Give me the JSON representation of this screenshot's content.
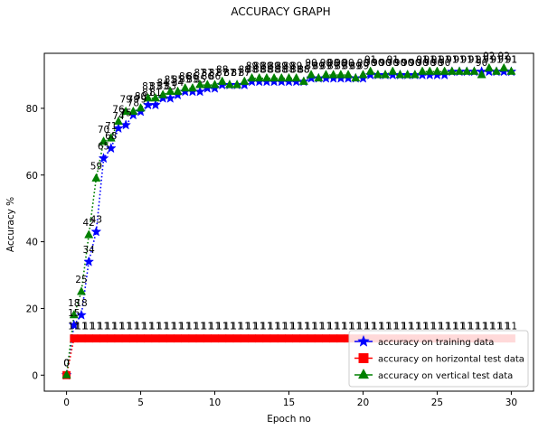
{
  "chart_data": {
    "type": "line",
    "title": "ACCURACY GRAPH",
    "xlabel": "Epoch no",
    "ylabel": "Accuracy %",
    "xlim": [
      -1.5,
      31.5
    ],
    "ylim": [
      -4.8,
      96.5
    ],
    "xticks": [
      "0",
      "5",
      "10",
      "15",
      "20",
      "25",
      "30"
    ],
    "yticks": [
      "0",
      "20",
      "40",
      "60",
      "80"
    ],
    "grid": false,
    "legend_position": "lower-right",
    "series": [
      {
        "name": "accuracy on training data",
        "color": "#0000ff",
        "marker": "star",
        "line_style": "dotted",
        "x": [
          0,
          0.5,
          1,
          1.5,
          2,
          2.5,
          3,
          3.5,
          4,
          4.5,
          5,
          5.5,
          6,
          6.5,
          7,
          7.5,
          8,
          8.5,
          9,
          9.5,
          10,
          10.5,
          11,
          11.5,
          12,
          12.5,
          13,
          13.5,
          14,
          14.5,
          15,
          15.5,
          16,
          16.5,
          17,
          17.5,
          18,
          18.5,
          19,
          19.5,
          20,
          20.5,
          21,
          21.5,
          22,
          22.5,
          23,
          23.5,
          24,
          24.5,
          25,
          25.5,
          26,
          26.5,
          27,
          27.5,
          28,
          28.5,
          29,
          29.5,
          30
        ],
        "y": [
          0,
          15,
          18,
          34,
          43,
          65,
          68,
          74,
          75,
          78,
          79,
          81,
          81,
          83,
          83,
          84,
          85,
          85,
          85,
          86,
          86,
          87,
          87,
          87,
          87,
          88,
          88,
          88,
          88,
          88,
          88,
          88,
          88,
          89,
          89,
          89,
          89,
          89,
          89,
          89,
          89,
          90,
          90,
          90,
          90,
          90,
          90,
          90,
          90,
          90,
          90,
          90,
          91,
          91,
          91,
          91,
          91,
          91,
          91,
          91,
          91
        ]
      },
      {
        "name": "accuracy on horizontal test data",
        "color": "#ff0000",
        "marker": "square",
        "line_style": "dotted",
        "x": [
          0,
          0.5,
          1,
          1.5,
          2,
          2.5,
          3,
          3.5,
          4,
          4.5,
          5,
          5.5,
          6,
          6.5,
          7,
          7.5,
          8,
          8.5,
          9,
          9.5,
          10,
          10.5,
          11,
          11.5,
          12,
          12.5,
          13,
          13.5,
          14,
          14.5,
          15,
          15.5,
          16,
          16.5,
          17,
          17.5,
          18,
          18.5,
          19,
          19.5,
          20,
          20.5,
          21,
          21.5,
          22,
          22.5,
          23,
          23.5,
          24,
          24.5,
          25,
          25.5,
          26,
          26.5,
          27,
          27.5,
          28,
          28.5,
          29,
          29.5,
          30
        ],
        "y": [
          0,
          11,
          11,
          11,
          11,
          11,
          11,
          11,
          11,
          11,
          11,
          11,
          11,
          11,
          11,
          11,
          11,
          11,
          11,
          11,
          11,
          11,
          11,
          11,
          11,
          11,
          11,
          11,
          11,
          11,
          11,
          11,
          11,
          11,
          11,
          11,
          11,
          11,
          11,
          11,
          11,
          11,
          11,
          11,
          11,
          11,
          11,
          11,
          11,
          11,
          11,
          11,
          11,
          11,
          11,
          11,
          11,
          11,
          11,
          11,
          11
        ]
      },
      {
        "name": "accuracy on vertical test data",
        "color": "#008000",
        "marker": "triangle",
        "line_style": "dotted",
        "x": [
          0,
          0.5,
          1,
          1.5,
          2,
          2.5,
          3,
          3.5,
          4,
          4.5,
          5,
          5.5,
          6,
          6.5,
          7,
          7.5,
          8,
          8.5,
          9,
          9.5,
          10,
          10.5,
          11,
          11.5,
          12,
          12.5,
          13,
          13.5,
          14,
          14.5,
          15,
          15.5,
          16,
          16.5,
          17,
          17.5,
          18,
          18.5,
          19,
          19.5,
          20,
          20.5,
          21,
          21.5,
          22,
          22.5,
          23,
          23.5,
          24,
          24.5,
          25,
          25.5,
          26,
          26.5,
          27,
          27.5,
          28,
          28.5,
          29,
          29.5,
          30
        ],
        "y": [
          0,
          18,
          25,
          42,
          59,
          70,
          71,
          76,
          79,
          79,
          80,
          83,
          83,
          84,
          85,
          85,
          86,
          86,
          87,
          87,
          87,
          88,
          87,
          87,
          88,
          89,
          89,
          89,
          89,
          89,
          89,
          89,
          88,
          90,
          89,
          90,
          90,
          90,
          90,
          89,
          90,
          91,
          90,
          90,
          91,
          90,
          90,
          90,
          91,
          91,
          91,
          91,
          91,
          91,
          91,
          91,
          90,
          92,
          91,
          92,
          91
        ]
      }
    ]
  }
}
